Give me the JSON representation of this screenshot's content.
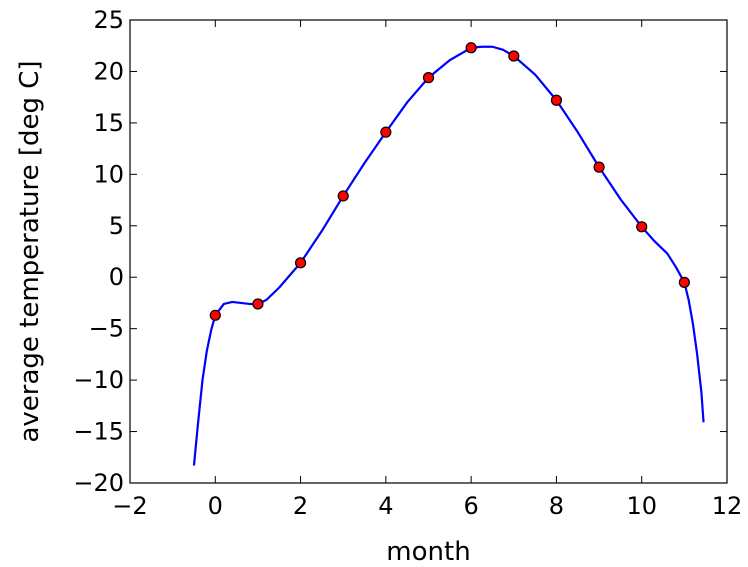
{
  "chart_data": {
    "type": "line",
    "title": "",
    "xlabel": "month",
    "ylabel": "average temperature [deg C]",
    "xlim": [
      -2,
      12
    ],
    "ylim": [
      -20,
      25
    ],
    "xticks": [
      -2,
      0,
      2,
      4,
      6,
      8,
      10,
      12
    ],
    "xtick_labels": [
      "−2",
      "0",
      "2",
      "4",
      "6",
      "8",
      "10",
      "12"
    ],
    "yticks": [
      -20,
      -15,
      -10,
      -5,
      0,
      5,
      10,
      15,
      20,
      25
    ],
    "ytick_labels": [
      "−20",
      "−15",
      "−10",
      "−5",
      "0",
      "5",
      "10",
      "15",
      "20",
      "25"
    ],
    "grid": false,
    "legend": "none",
    "series": [
      {
        "kind": "scatter",
        "color": "#ff0000",
        "edge_color": "#000000",
        "x": [
          0,
          1,
          2,
          3,
          4,
          5,
          6,
          7,
          8,
          9,
          10,
          11
        ],
        "y": [
          -3.7,
          -2.6,
          1.4,
          7.9,
          14.1,
          19.4,
          22.3,
          21.5,
          17.2,
          10.7,
          4.9,
          -0.5
        ]
      },
      {
        "kind": "line",
        "color": "#0000ff",
        "x": [
          -0.5,
          -0.4,
          -0.3,
          -0.2,
          -0.1,
          0.0,
          0.2,
          0.4,
          0.6,
          0.8,
          1.0,
          1.2,
          1.5,
          2.0,
          2.5,
          3.0,
          3.5,
          4.0,
          4.5,
          5.0,
          5.5,
          6.0,
          6.25,
          6.5,
          6.75,
          7.0,
          7.5,
          8.0,
          8.5,
          9.0,
          9.5,
          10.0,
          10.3,
          10.6,
          10.8,
          11.0,
          11.1,
          11.2,
          11.3,
          11.4,
          11.45
        ],
        "y": [
          -18.3,
          -14.0,
          -10.0,
          -7.2,
          -5.2,
          -3.7,
          -2.6,
          -2.4,
          -2.5,
          -2.6,
          -2.6,
          -2.2,
          -1.0,
          1.4,
          4.5,
          7.9,
          11.1,
          14.1,
          17.0,
          19.4,
          21.1,
          22.3,
          22.4,
          22.4,
          22.1,
          21.5,
          19.7,
          17.2,
          14.1,
          10.7,
          7.6,
          4.9,
          3.5,
          2.3,
          1.0,
          -0.5,
          -2.2,
          -4.5,
          -7.5,
          -11.2,
          -14.1
        ]
      }
    ]
  }
}
